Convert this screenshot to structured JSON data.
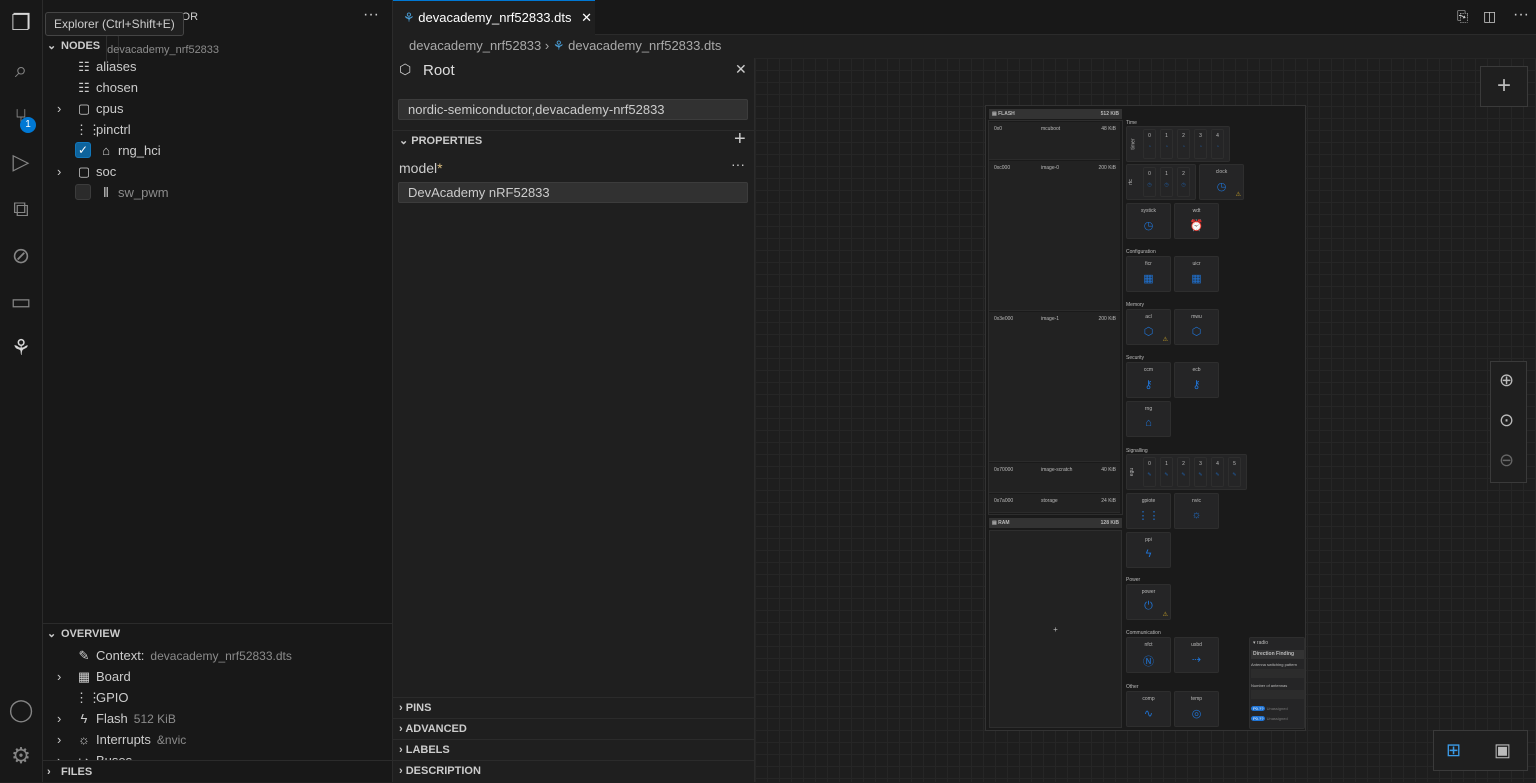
{
  "activity_bar": {
    "source_control_badge": "1"
  },
  "tooltip": "Explorer (Ctrl+Shift+E)",
  "sidebar": {
    "title_suffix": "TOR",
    "nodes": {
      "title": "NODES",
      "subtitle": "devacademy_nrf52833",
      "items": [
        {
          "label": "aliases",
          "icon": "list-icon",
          "expandable": false
        },
        {
          "label": "chosen",
          "icon": "list-icon",
          "expandable": false
        },
        {
          "label": "cpus",
          "icon": "chip-icon",
          "expandable": true
        },
        {
          "label": "pinctrl",
          "icon": "pinctrl-icon",
          "expandable": false
        },
        {
          "label": "rng_hci",
          "icon": "rng-icon",
          "checkbox": true,
          "checked": true
        },
        {
          "label": "soc",
          "icon": "chip-icon",
          "expandable": true
        },
        {
          "label": "sw_pwm",
          "icon": "pwm-icon",
          "checkbox": true,
          "checked": false
        }
      ]
    },
    "overview": {
      "title": "OVERVIEW",
      "items": [
        {
          "label": "Context:",
          "desc": "devacademy_nrf52833.dts",
          "icon": "pencil-icon",
          "expandable": false
        },
        {
          "label": "Board",
          "desc": "",
          "icon": "board-icon",
          "expandable": true
        },
        {
          "label": "GPIO",
          "desc": "",
          "icon": "gpio-icon",
          "expandable": false
        },
        {
          "label": "Flash",
          "desc": "512 KiB",
          "icon": "flash-icon",
          "expandable": true
        },
        {
          "label": "Interrupts",
          "desc": "&nvic",
          "icon": "interrupts-icon",
          "expandable": true
        },
        {
          "label": "Buses",
          "desc": "",
          "icon": "bus-icon",
          "expandable": true
        }
      ]
    },
    "files": {
      "title": "FILES"
    }
  },
  "editor": {
    "tab": "devacademy_nrf52833.dts",
    "breadcrumb": [
      "devacademy_nrf52833",
      "devacademy_nrf52833.dts"
    ],
    "node_panel": {
      "title": "Root",
      "compatible": "nordic-semiconductor,devacademy-nrf52833",
      "properties_title": "PROPERTIES",
      "property_name": "model",
      "required_mark": "*",
      "property_value": "DevAcademy nRF52833",
      "sections": [
        "PINS",
        "ADVANCED",
        "LABELS",
        "DESCRIPTION"
      ]
    }
  },
  "diagram": {
    "flash": {
      "title": "FLASH",
      "size": "512 KiB",
      "partitions": [
        {
          "addr": "0x0",
          "name": "mcuboot",
          "size": "48 KiB"
        },
        {
          "addr": "0xc000",
          "name": "image-0",
          "size": "200 KiB"
        },
        {
          "addr": "0x3e000",
          "name": "image-1",
          "size": "200 KiB"
        },
        {
          "addr": "0x70000",
          "name": "image-scratch",
          "size": "40 KiB"
        },
        {
          "addr": "0x7a000",
          "name": "storage",
          "size": "24 KiB"
        }
      ]
    },
    "ram": {
      "title": "RAM",
      "size": "128 KiB",
      "add": "+"
    },
    "groups": {
      "time": "Time",
      "configuration": "Configuration",
      "memory": "Memory",
      "security": "Security",
      "signalling": "Signalling",
      "power": "Power",
      "communication": "Communication",
      "other": "Other"
    },
    "timer": {
      "label": "timer",
      "instances": [
        "0",
        "1",
        "2",
        "3",
        "4"
      ]
    },
    "rtc": {
      "label": "rtc",
      "instances": [
        "0",
        "1",
        "2"
      ]
    },
    "egu": {
      "label": "egu",
      "instances": [
        "0",
        "1",
        "2",
        "3",
        "4",
        "5"
      ]
    },
    "cards": [
      {
        "name": "clock",
        "warning": true
      },
      {
        "name": "systick"
      },
      {
        "name": "wdt"
      },
      {
        "name": "ficr"
      },
      {
        "name": "uicr"
      },
      {
        "name": "acl",
        "warning": true
      },
      {
        "name": "mwu"
      },
      {
        "name": "ccm"
      },
      {
        "name": "ecb"
      },
      {
        "name": "rng"
      },
      {
        "name": "gpiote"
      },
      {
        "name": "nvic"
      },
      {
        "name": "ppi"
      },
      {
        "name": "power",
        "warning": true
      },
      {
        "name": "nfct"
      },
      {
        "name": "usbd"
      },
      {
        "name": "comp"
      },
      {
        "name": "temp"
      }
    ],
    "radio": {
      "title": "radio",
      "section": "Direction Finding",
      "field1": "Antenna switching pattern",
      "field2": "Number of antennas",
      "pins": [
        {
          "pin": "P0.??",
          "state": "Unassigned"
        },
        {
          "pin": "P0.??",
          "state": "Unassigned"
        }
      ]
    }
  },
  "zoom_controls": {
    "add": "+"
  }
}
